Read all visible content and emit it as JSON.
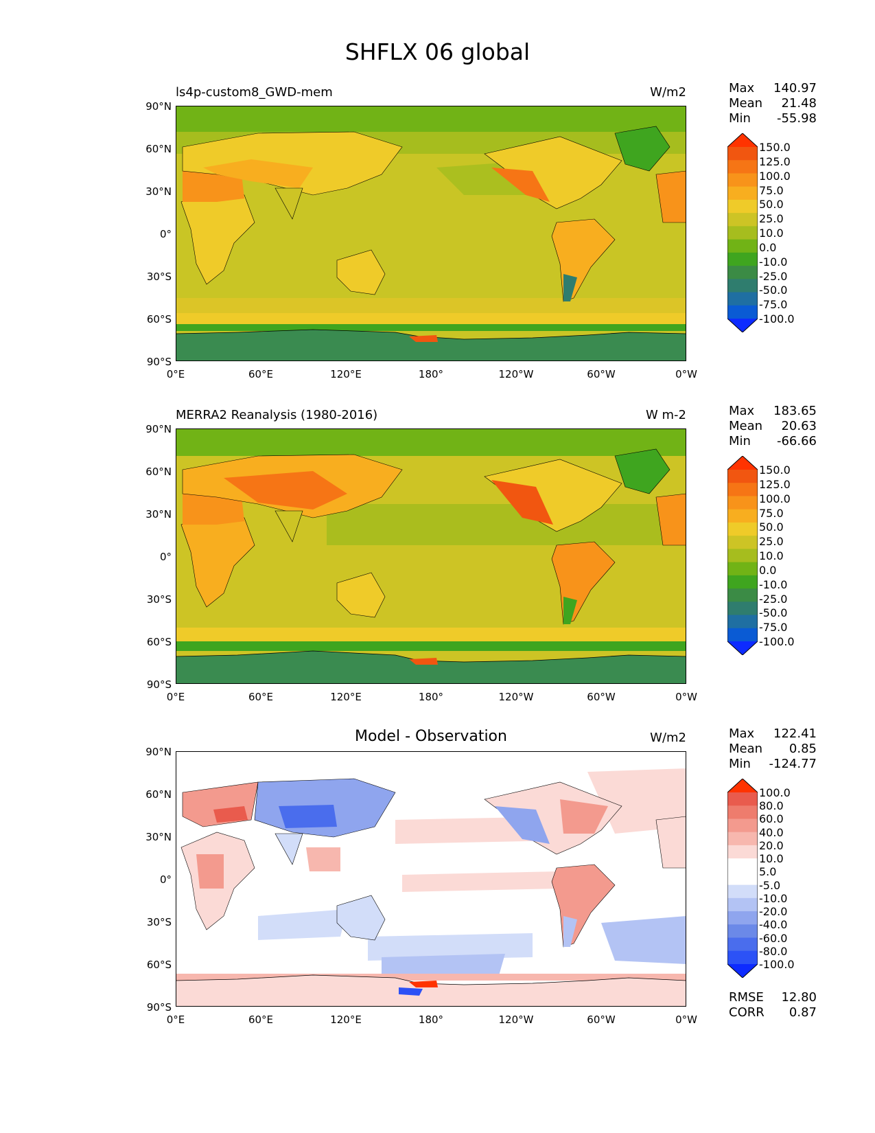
{
  "title": "SHFLX 06 global",
  "lat_ticks": [
    "90°N",
    "60°N",
    "30°N",
    "0°",
    "30°S",
    "60°S",
    "90°S"
  ],
  "lon_ticks": [
    "0°E",
    "60°E",
    "120°E",
    "180°",
    "120°W",
    "60°W",
    "0°W"
  ],
  "colors": {
    "abs_scale": [
      "#0d2bff",
      "#0a5bd4",
      "#1f6fa2",
      "#2f7d6e",
      "#3b8b45",
      "#3fa51f",
      "#71b316",
      "#a6bd1e",
      "#cdc425",
      "#efcb29",
      "#f8ae1f",
      "#f8931a",
      "#f67515",
      "#f15610",
      "#ff3300"
    ],
    "diff_scale": [
      "#0d2bff",
      "#2c52f6",
      "#4a6ded",
      "#6b89e8",
      "#8fa5ee",
      "#b3c3f4",
      "#d2ddf9",
      "#ffffff",
      "#ffffff",
      "#fbdad6",
      "#f7b7ae",
      "#f39a8e",
      "#ee7c6d",
      "#e95b4d",
      "#ff3300"
    ]
  },
  "panels": [
    {
      "label": "ls4p-custom8_GWD-mem",
      "center_title": "",
      "units": "W/m2",
      "stats": {
        "max_label": "Max",
        "max": "140.97",
        "mean_label": "Mean",
        "mean": "21.48",
        "min_label": "Min",
        "min": "-55.98"
      },
      "colorbar_levels": [
        "150.0",
        "125.0",
        "100.0",
        "75.0",
        "50.0",
        "25.0",
        "10.0",
        "0.0",
        "-10.0",
        "-25.0",
        "-50.0",
        "-75.0",
        "-100.0"
      ]
    },
    {
      "label": "MERRA2 Reanalysis (1980-2016)",
      "center_title": "",
      "units": "W m-2",
      "stats": {
        "max_label": "Max",
        "max": "183.65",
        "mean_label": "Mean",
        "mean": "20.63",
        "min_label": "Min",
        "min": "-66.66"
      },
      "colorbar_levels": [
        "150.0",
        "125.0",
        "100.0",
        "75.0",
        "50.0",
        "25.0",
        "10.0",
        "0.0",
        "-10.0",
        "-25.0",
        "-50.0",
        "-75.0",
        "-100.0"
      ]
    },
    {
      "label": "",
      "center_title": "Model - Observation",
      "units": "W/m2",
      "stats": {
        "max_label": "Max",
        "max": "122.41",
        "mean_label": "Mean",
        "mean": "0.85",
        "min_label": "Min",
        "min": "-124.77"
      },
      "colorbar_levels": [
        "100.0",
        "80.0",
        "60.0",
        "40.0",
        "20.0",
        "10.0",
        "5.0",
        "-5.0",
        "-10.0",
        "-20.0",
        "-40.0",
        "-60.0",
        "-80.0",
        "-100.0"
      ]
    }
  ],
  "bottom_stats": {
    "rmse_label": "RMSE",
    "rmse": "12.80",
    "corr_label": "CORR",
    "corr": "0.87"
  },
  "chart_data": [
    {
      "type": "heatmap",
      "title": "ls4p-custom8_GWD-mem",
      "units": "W/m2",
      "x_range": [
        0,
        360
      ],
      "y_range": [
        -90,
        90
      ],
      "xlabel": "",
      "ylabel": "",
      "levels": [
        -100,
        -75,
        -50,
        -25,
        -10,
        0,
        10,
        25,
        50,
        75,
        100,
        125,
        150
      ],
      "max": 140.97,
      "mean": 21.48,
      "min": -55.98
    },
    {
      "type": "heatmap",
      "title": "MERRA2 Reanalysis (1980-2016)",
      "units": "W m-2",
      "x_range": [
        0,
        360
      ],
      "y_range": [
        -90,
        90
      ],
      "xlabel": "",
      "ylabel": "",
      "levels": [
        -100,
        -75,
        -50,
        -25,
        -10,
        0,
        10,
        25,
        50,
        75,
        100,
        125,
        150
      ],
      "max": 183.65,
      "mean": 20.63,
      "min": -66.66
    },
    {
      "type": "heatmap",
      "title": "Model - Observation",
      "units": "W/m2",
      "x_range": [
        0,
        360
      ],
      "y_range": [
        -90,
        90
      ],
      "xlabel": "",
      "ylabel": "",
      "levels": [
        -100,
        -80,
        -60,
        -40,
        -20,
        -10,
        -5,
        5,
        10,
        20,
        40,
        60,
        80,
        100
      ],
      "max": 122.41,
      "mean": 0.85,
      "min": -124.77,
      "rmse": 12.8,
      "corr": 0.87
    }
  ]
}
